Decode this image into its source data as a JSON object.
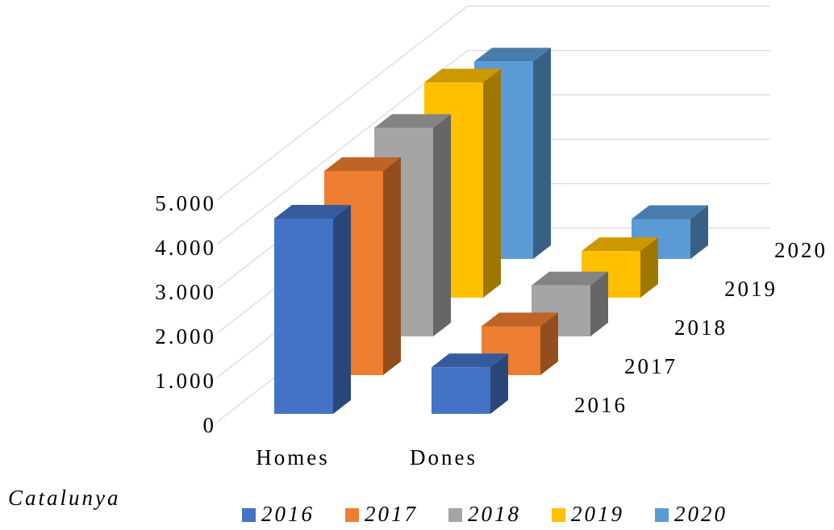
{
  "chart_data": {
    "type": "bar3d",
    "x_label": "Catalunya",
    "categories": [
      "Homes",
      "Dones"
    ],
    "series": [
      {
        "name": "2016",
        "color": "#4472c4",
        "values": [
          4400,
          1050
        ]
      },
      {
        "name": "2017",
        "color": "#ed7d31",
        "values": [
          4600,
          1100
        ]
      },
      {
        "name": "2018",
        "color": "#a5a5a5",
        "values": [
          4700,
          1150
        ]
      },
      {
        "name": "2019",
        "color": "#ffc000",
        "values": [
          4850,
          1050
        ]
      },
      {
        "name": "2020",
        "color": "#5b9bd5",
        "values": [
          4450,
          900
        ]
      }
    ],
    "ylim": [
      0,
      5000
    ],
    "yticks": [
      0,
      {
        "value": 1000,
        "label": "1.000"
      },
      {
        "value": 2000,
        "label": "2.000"
      },
      {
        "value": 3000,
        "label": "3.000"
      },
      {
        "value": 4000,
        "label": "4.000"
      },
      {
        "value": 5000,
        "label": "5.000"
      }
    ],
    "grid": true,
    "legend": "bottom"
  }
}
